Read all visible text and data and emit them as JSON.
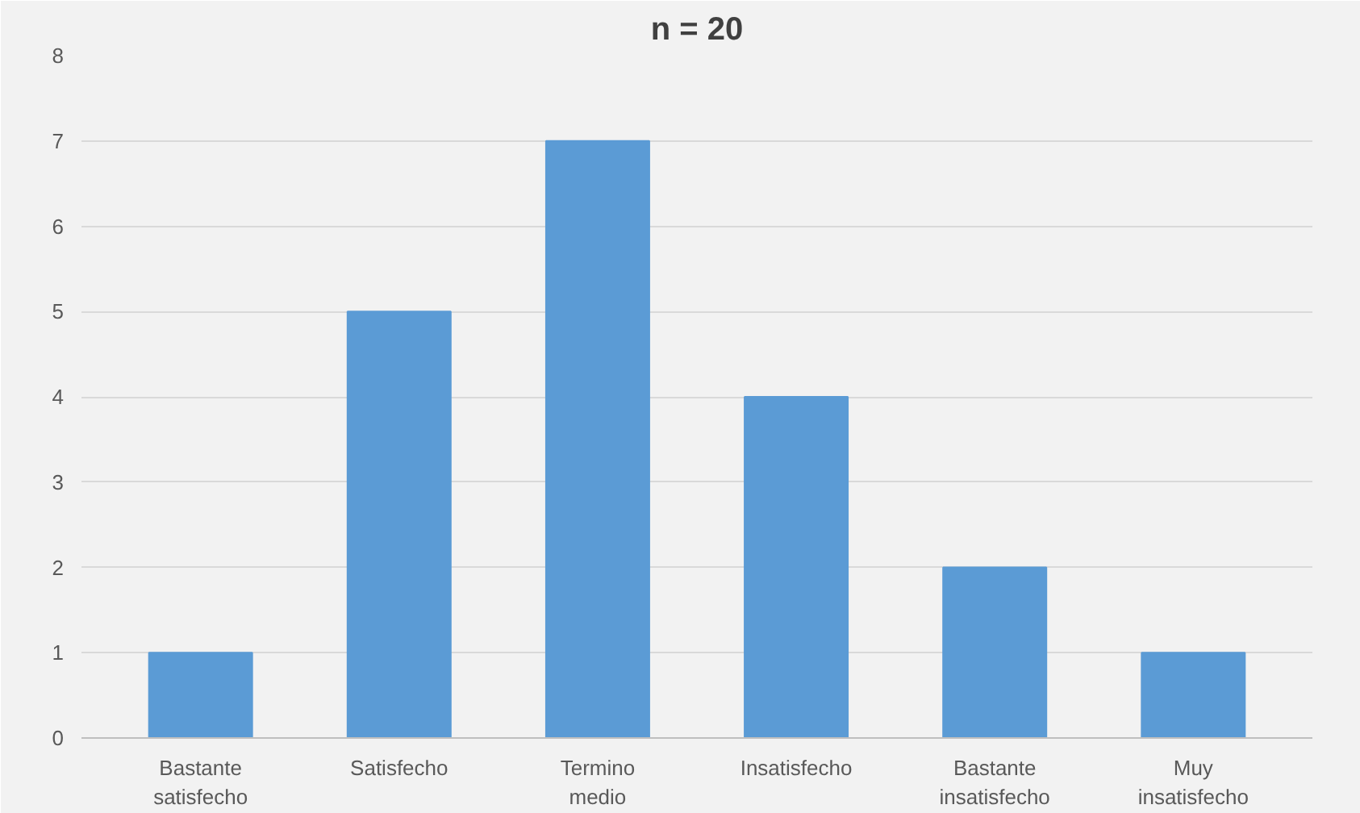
{
  "chart_data": {
    "type": "bar",
    "title": "n = 20",
    "categories": [
      "Bastante satisfecho",
      "Satisfecho",
      "Termino medio",
      "Insatisfecho",
      "Bastante insatisfecho",
      "Muy insatisfecho"
    ],
    "values": [
      1,
      5,
      7,
      4,
      2,
      1
    ],
    "color": "#5b9bd5",
    "ylim": [
      0,
      8
    ],
    "yticks": [
      0,
      1,
      2,
      3,
      4,
      5,
      6,
      7,
      8
    ],
    "grid": "y"
  }
}
